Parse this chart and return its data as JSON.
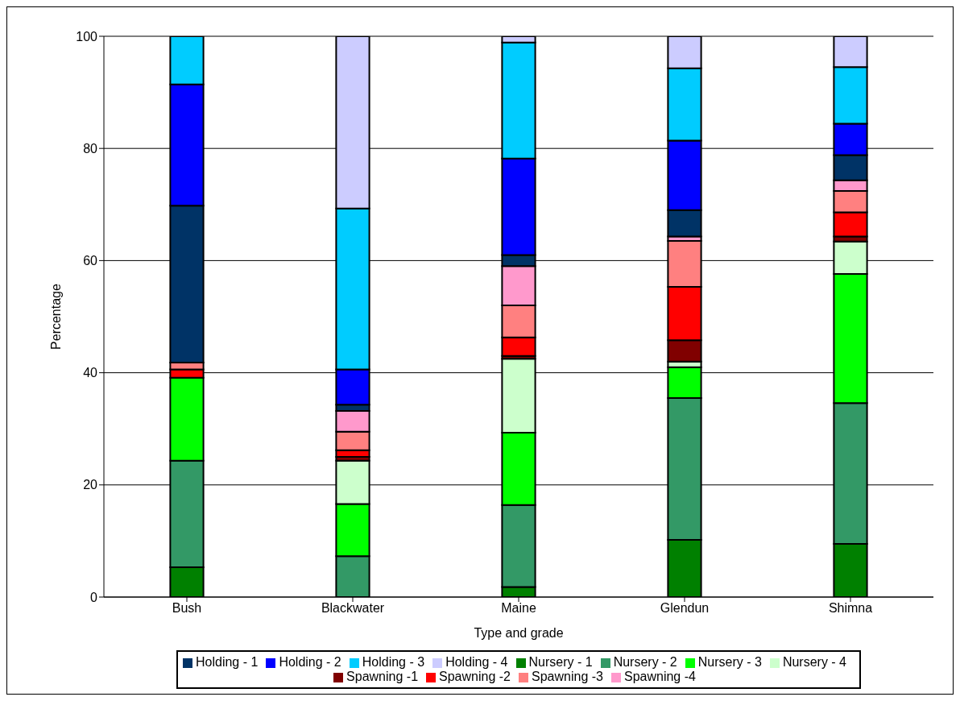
{
  "chart_data": {
    "type": "bar",
    "stacked": true,
    "xlabel": "Type and grade",
    "ylabel": "Percentage",
    "categories": [
      "Bush",
      "Blackwater",
      "Maine",
      "Glendun",
      "Shimna"
    ],
    "series": [
      {
        "name": "Nursery - 1",
        "color": "#008000",
        "values": [
          5.3,
          0,
          1.8,
          10.2,
          9.5
        ]
      },
      {
        "name": "Nursery - 2",
        "color": "#339966",
        "values": [
          19.0,
          7.3,
          14.6,
          25.3,
          25.1
        ]
      },
      {
        "name": "Nursery - 3",
        "color": "#00ff00",
        "values": [
          14.8,
          9.3,
          12.9,
          5.5,
          23.0
        ]
      },
      {
        "name": "Nursery - 4",
        "color": "#ccffcc",
        "values": [
          0,
          7.7,
          13.2,
          1.0,
          5.8
        ]
      },
      {
        "name": "Spawning -1",
        "color": "#800000",
        "values": [
          0,
          0.7,
          0.5,
          3.8,
          0.9
        ]
      },
      {
        "name": "Spawning -2",
        "color": "#ff0000",
        "values": [
          1.5,
          1.2,
          3.3,
          9.5,
          4.3
        ]
      },
      {
        "name": "Spawning -3",
        "color": "#ff8080",
        "values": [
          1.2,
          3.3,
          5.7,
          8.2,
          3.8
        ]
      },
      {
        "name": "Spawning -4",
        "color": "#ff99cc",
        "values": [
          0,
          3.7,
          7.0,
          0.8,
          1.9
        ]
      },
      {
        "name": "Holding - 1",
        "color": "#003366",
        "values": [
          28.0,
          1.1,
          2.0,
          4.7,
          4.5
        ]
      },
      {
        "name": "Holding - 2",
        "color": "#0000ff",
        "values": [
          21.6,
          6.3,
          17.2,
          12.4,
          5.6
        ]
      },
      {
        "name": "Holding - 3",
        "color": "#00ccff",
        "values": [
          8.6,
          28.7,
          20.7,
          12.9,
          10.1
        ]
      },
      {
        "name": "Holding - 4",
        "color": "#ccccff",
        "values": [
          0,
          30.7,
          1.1,
          5.7,
          5.5
        ]
      }
    ],
    "ylim": [
      0,
      100
    ],
    "yticks": [
      0,
      20,
      40,
      60,
      80,
      100
    ],
    "grid": "y",
    "legend": "bottom"
  }
}
